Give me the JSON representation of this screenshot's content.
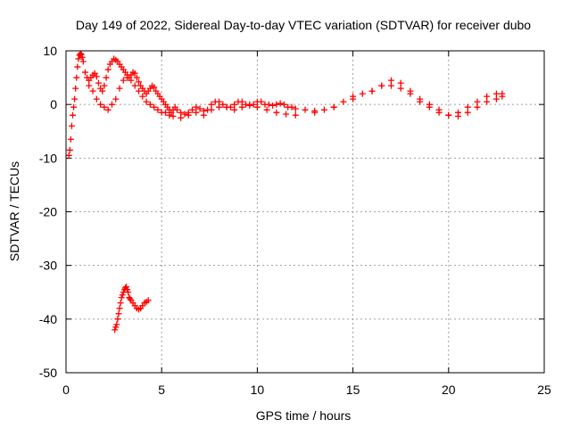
{
  "chart_data": {
    "type": "scatter",
    "title": "Day 149 of 2022, Sidereal Day-to-day VTEC variation (SDTVAR) for receiver dubo",
    "xlabel": "GPS time / hours",
    "ylabel": "SDTVAR / TECUs",
    "xlim": [
      0,
      25
    ],
    "ylim": [
      -50,
      10
    ],
    "xticks": [
      0,
      5,
      10,
      15,
      20,
      25
    ],
    "yticks": [
      10,
      0,
      -10,
      -20,
      -30,
      -40,
      -50
    ],
    "xtick_labels": [
      "0",
      "5",
      "10",
      "15",
      "20",
      "25"
    ],
    "ytick_labels": [
      "10",
      "0",
      "-10",
      "-20",
      "-30",
      "-40",
      "-50"
    ],
    "grid": true,
    "marker": "plus",
    "series": [
      {
        "name": "SDTVAR",
        "color": "#ff0000",
        "x": [
          0.15,
          0.2,
          0.25,
          0.3,
          0.35,
          0.4,
          0.45,
          0.5,
          0.55,
          0.6,
          0.65,
          0.7,
          0.75,
          0.8,
          0.85,
          0.9,
          1.0,
          1.1,
          1.2,
          1.3,
          1.4,
          1.5,
          1.6,
          1.7,
          1.8,
          1.9,
          2.0,
          2.1,
          2.2,
          2.3,
          2.4,
          2.5,
          2.6,
          2.7,
          2.8,
          2.9,
          3.0,
          3.1,
          3.2,
          3.3,
          3.4,
          3.5,
          3.6,
          3.7,
          3.8,
          3.9,
          4.0,
          4.1,
          4.2,
          4.3,
          4.4,
          4.5,
          4.6,
          4.7,
          4.8,
          4.9,
          5.0,
          5.1,
          5.2,
          5.3,
          5.4,
          5.5,
          5.6,
          5.7,
          5.8,
          6.0,
          6.2,
          6.4,
          6.6,
          6.8,
          7.0,
          7.2,
          7.4,
          7.6,
          7.8,
          8.0,
          8.2,
          8.4,
          8.6,
          8.8,
          9.0,
          9.2,
          9.4,
          9.6,
          9.8,
          10.0,
          10.2,
          10.4,
          10.6,
          10.8,
          11.0,
          11.2,
          11.4,
          11.6,
          11.8,
          12.0,
          12.5,
          13.0,
          13.5,
          14.0,
          14.5,
          15.0,
          15.5,
          16.0,
          16.5,
          17.0,
          17.5,
          18.0,
          18.5,
          19.0,
          19.5,
          20.0,
          20.5,
          21.0,
          21.5,
          22.0,
          22.5,
          22.8,
          1.2,
          1.4,
          1.6,
          1.8,
          2.0,
          2.2,
          2.4,
          2.6,
          2.8,
          3.0,
          3.2,
          3.4,
          3.6,
          3.8,
          4.0,
          4.2,
          4.4,
          4.6,
          4.8,
          5.0,
          5.2,
          5.4,
          5.6,
          6.0,
          6.4,
          6.8,
          7.2,
          7.6,
          8.0,
          8.4,
          8.8,
          9.2,
          9.6,
          10.0,
          10.5,
          11.0,
          11.5,
          12.0,
          13.0,
          14.0,
          15.0,
          16.0,
          16.5,
          17.0,
          17.5,
          18.0,
          18.5,
          19.0,
          19.5,
          20.0,
          20.5,
          21.0,
          21.5,
          22.0,
          22.5,
          22.8,
          2.55,
          2.6,
          2.65,
          2.7,
          2.75,
          2.8,
          2.85,
          2.9,
          2.95,
          3.0,
          3.05,
          3.1,
          3.15,
          3.2,
          3.25,
          3.3,
          3.35,
          3.4,
          3.5,
          3.6,
          3.7,
          3.8,
          3.9,
          4.0,
          4.1,
          4.2,
          4.3
        ],
        "y": [
          -9.5,
          -8.5,
          -6.5,
          -4.0,
          -2.0,
          -0.5,
          1.0,
          3.0,
          5.0,
          7.0,
          8.5,
          9.2,
          9.5,
          9.3,
          8.8,
          8.0,
          6.0,
          5.0,
          4.5,
          5.0,
          5.5,
          5.8,
          5.2,
          4.0,
          3.0,
          2.5,
          3.5,
          5.0,
          6.5,
          7.5,
          8.0,
          8.5,
          8.3,
          8.0,
          7.5,
          7.0,
          6.5,
          6.0,
          5.5,
          5.0,
          5.5,
          6.0,
          5.8,
          5.0,
          4.2,
          3.5,
          3.0,
          2.5,
          2.0,
          2.5,
          3.0,
          3.5,
          3.2,
          2.5,
          2.0,
          1.5,
          1.0,
          0.5,
          0.0,
          -0.5,
          -1.0,
          -1.5,
          -1.0,
          -0.5,
          -1.0,
          -1.5,
          -1.8,
          -1.5,
          -1.0,
          -0.5,
          -0.8,
          -1.2,
          -1.0,
          0.0,
          0.5,
          0.5,
          0.0,
          -0.5,
          -0.5,
          0.0,
          0.5,
          0.5,
          0.0,
          -0.2,
          0.0,
          0.5,
          0.5,
          0.0,
          0.0,
          -0.2,
          0.0,
          0.2,
          0.0,
          -0.5,
          -0.5,
          -0.8,
          -1.0,
          -1.2,
          -1.0,
          -0.5,
          0.5,
          1.5,
          2.0,
          2.5,
          3.5,
          4.5,
          4.0,
          2.5,
          1.0,
          0.0,
          -1.0,
          -2.0,
          -1.5,
          -0.5,
          0.5,
          1.5,
          2.0,
          2.0,
          3.5,
          2.5,
          1.0,
          0.0,
          -0.5,
          -1.0,
          0.0,
          1.0,
          3.0,
          4.5,
          5.0,
          4.5,
          3.5,
          2.5,
          1.5,
          0.5,
          0.0,
          -0.5,
          -1.0,
          -1.5,
          -1.5,
          -2.0,
          -2.2,
          -2.5,
          -2.0,
          -1.5,
          -2.0,
          -1.0,
          -0.5,
          -0.5,
          -1.0,
          -0.5,
          0.0,
          -0.5,
          -1.0,
          -1.5,
          -1.8,
          -2.0,
          -1.5,
          -0.5,
          1.0,
          2.5,
          3.5,
          3.5,
          3.0,
          2.0,
          0.5,
          -0.5,
          -1.5,
          -2.0,
          -2.2,
          -1.5,
          -0.5,
          0.5,
          1.0,
          1.5,
          -42.0,
          -41.5,
          -41.0,
          -40.0,
          -39.0,
          -38.0,
          -37.0,
          -36.0,
          -35.5,
          -35.0,
          -34.5,
          -34.2,
          -34.0,
          -34.5,
          -35.0,
          -36.0,
          -36.2,
          -36.5,
          -37.0,
          -37.5,
          -38.0,
          -38.2,
          -38.0,
          -37.5,
          -37.0,
          -36.8,
          -36.5
        ]
      }
    ]
  }
}
